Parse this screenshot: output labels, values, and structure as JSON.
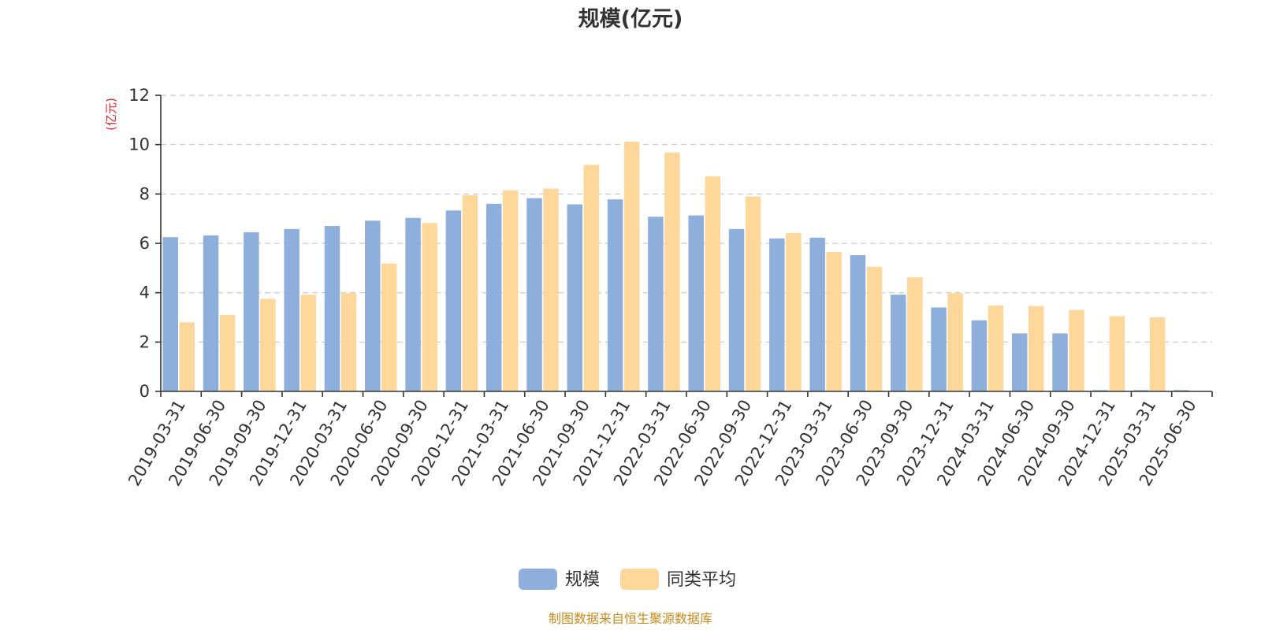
{
  "chart_data": {
    "type": "bar",
    "title": "规模(亿元)",
    "ylabel": "(亿元)",
    "xlabel": "",
    "ylim": [
      0,
      12
    ],
    "yticks": [
      0,
      2,
      4,
      6,
      8,
      10,
      12
    ],
    "grid": true,
    "legend_position": "bottom-center",
    "categories": [
      "2019-03-31",
      "2019-06-30",
      "2019-09-30",
      "2019-12-31",
      "2020-03-31",
      "2020-06-30",
      "2020-09-30",
      "2020-12-31",
      "2021-03-31",
      "2021-06-30",
      "2021-09-30",
      "2021-12-31",
      "2022-03-31",
      "2022-06-30",
      "2022-09-30",
      "2022-12-31",
      "2023-03-31",
      "2023-06-30",
      "2023-09-30",
      "2023-12-31",
      "2024-03-31",
      "2024-06-30",
      "2024-09-30",
      "2024-12-31",
      "2025-03-31",
      "2025-06-30"
    ],
    "series": [
      {
        "name": "规模",
        "color": "#8eaedb",
        "values": [
          6.25,
          6.32,
          6.45,
          6.58,
          6.7,
          6.92,
          7.03,
          7.33,
          7.6,
          7.83,
          7.58,
          7.78,
          7.08,
          7.13,
          6.58,
          6.2,
          6.23,
          5.52,
          3.92,
          3.4,
          2.88,
          2.35,
          2.35,
          0.05,
          0.05,
          0.05
        ]
      },
      {
        "name": "同类平均",
        "color": "#fdd89a",
        "values": [
          2.8,
          3.1,
          3.75,
          3.92,
          3.98,
          5.18,
          6.82,
          7.95,
          8.15,
          8.22,
          9.18,
          10.12,
          9.68,
          8.72,
          7.9,
          6.42,
          5.65,
          5.05,
          4.62,
          3.98,
          3.48,
          3.46,
          3.3,
          3.05,
          3.0,
          null
        ]
      }
    ],
    "source": "制图数据来自恒生聚源数据库"
  }
}
